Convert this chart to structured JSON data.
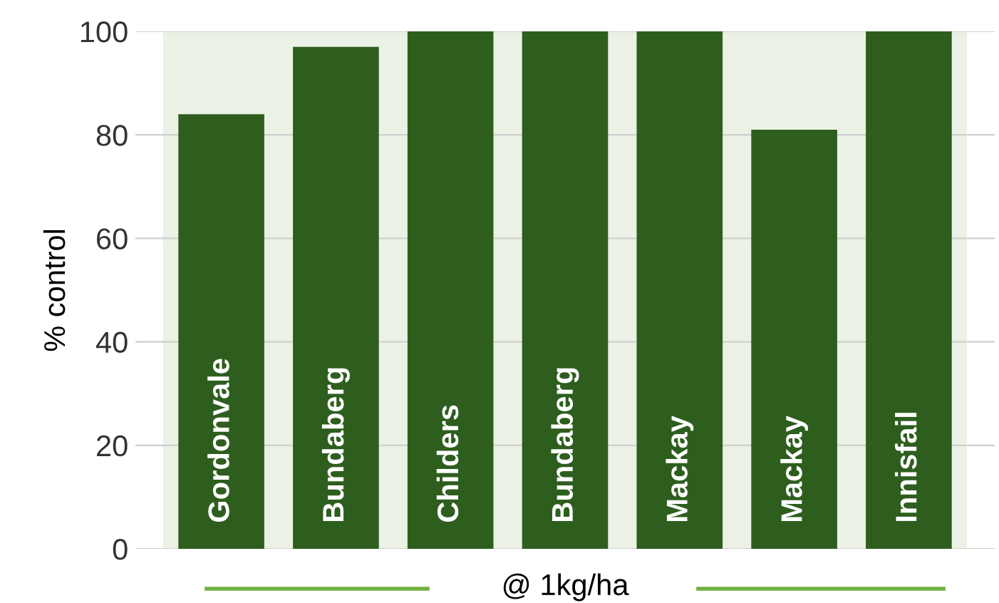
{
  "chart_data": {
    "type": "bar",
    "ylabel": "% control",
    "xlabel": "@ 1kg/ha",
    "categories": [
      "Gordonvale",
      "Bundaberg",
      "Childers",
      "Bundaberg",
      "Mackay",
      "Mackay",
      "Innisfail"
    ],
    "values": [
      84,
      97,
      100,
      100,
      100,
      81,
      100
    ],
    "color": "#2e5e1e",
    "ylim": [
      0,
      100
    ],
    "yticks": [
      0,
      20,
      40,
      60,
      80,
      100
    ],
    "grid": "y"
  }
}
